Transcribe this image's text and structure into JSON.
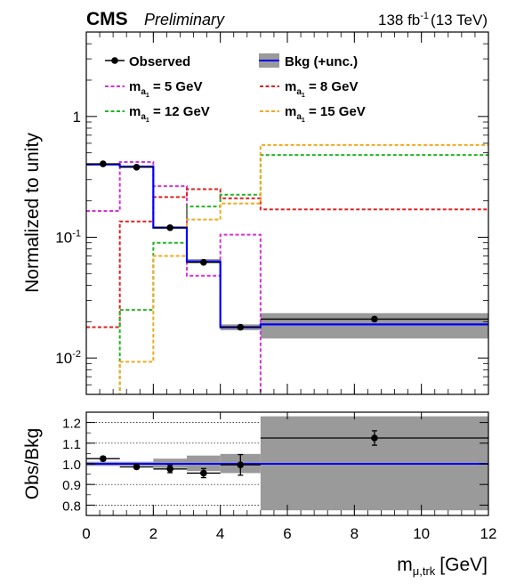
{
  "header": {
    "experiment": "CMS",
    "status": "Preliminary",
    "lumi_value": "138 fb",
    "lumi_exp": "-1",
    "lumi_energy": "(13 TeV)"
  },
  "colors": {
    "observed": "#000000",
    "bkg_line": "#0000ff",
    "bkg_band": "#9a9a9a",
    "sig_5": "#d633d6",
    "sig_8": "#e02020",
    "sig_12": "#22b522",
    "sig_15": "#f2a81e"
  },
  "legend": {
    "observed": "Observed",
    "bkg": "Bkg (+unc.)",
    "sig_5": "5 GeV",
    "sig_8": "8 GeV",
    "sig_12": "12 GeV",
    "sig_15": "15 GeV",
    "mass_symbol": "m",
    "mass_sub": "a",
    "mass_subsub": "1"
  },
  "chart_data": [
    {
      "type": "line",
      "panel": "main",
      "ylabel": "Normalized to unity",
      "yscale": "log",
      "ylim": [
        0.005,
        5
      ],
      "xlim": [
        0,
        12
      ],
      "ytick_labels": [
        {
          "value": 1,
          "label": "1"
        },
        {
          "value": 0.1,
          "label": "10",
          "exp": "-1"
        },
        {
          "value": 0.01,
          "label": "10",
          "exp": "-2"
        }
      ],
      "bin_edges": [
        0,
        1,
        2,
        3,
        4,
        5.2,
        12
      ],
      "observed": {
        "name": "Observed",
        "x": [
          0.5,
          1.5,
          2.5,
          3.5,
          4.6,
          8.6
        ],
        "y": [
          0.405,
          0.38,
          0.12,
          0.062,
          0.018,
          0.021
        ],
        "xerr": [
          0.5,
          0.5,
          0.5,
          0.5,
          0.6,
          3.4
        ]
      },
      "background": {
        "name": "Bkg (+unc.)",
        "values": [
          0.4,
          0.385,
          0.12,
          0.063,
          0.018,
          0.019
        ],
        "band_low": [
          0.395,
          0.38,
          0.118,
          0.061,
          0.017,
          0.0145
        ],
        "band_high": [
          0.405,
          0.39,
          0.123,
          0.066,
          0.019,
          0.0235
        ]
      },
      "series": [
        {
          "name": "5 GeV",
          "color_key": "sig_5",
          "values": [
            0.165,
            0.42,
            0.265,
            0.048,
            0.105,
            0.001
          ]
        },
        {
          "name": "8 GeV",
          "color_key": "sig_8",
          "values": [
            0.018,
            0.135,
            0.215,
            0.25,
            0.21,
            0.17
          ]
        },
        {
          "name": "12 GeV",
          "color_key": "sig_12",
          "values": [
            0.001,
            0.025,
            0.09,
            0.18,
            0.225,
            0.48
          ]
        },
        {
          "name": "15 GeV",
          "color_key": "sig_15",
          "values": [
            0.001,
            0.0093,
            0.07,
            0.14,
            0.19,
            0.58
          ]
        }
      ]
    },
    {
      "type": "scatter",
      "panel": "ratio",
      "ylabel": "Obs/Bkg",
      "xlabel_main": "m",
      "xlabel_sub": "μ,trk",
      "xlabel_unit": "[GeV]",
      "xlim": [
        0,
        12
      ],
      "ylim": [
        0.75,
        1.25
      ],
      "xticks": [
        0,
        2,
        4,
        6,
        8,
        10,
        12
      ],
      "yticks": [
        0.8,
        0.9,
        1.0,
        1.1,
        1.2
      ],
      "ytick_labels": [
        "0.8",
        "0.9",
        "1.0",
        "1.1",
        "1.2"
      ],
      "grid": true,
      "points": {
        "x": [
          0.5,
          1.5,
          2.5,
          3.5,
          4.6,
          8.6
        ],
        "y": [
          1.025,
          0.985,
          0.975,
          0.955,
          0.995,
          1.125
        ],
        "xerr": [
          0.5,
          0.5,
          0.5,
          0.5,
          0.6,
          3.4
        ],
        "yerr": [
          0.01,
          0.008,
          0.018,
          0.022,
          0.05,
          0.035
        ]
      },
      "band": {
        "bin_edges": [
          0,
          1,
          2,
          3,
          4,
          5.2,
          12
        ],
        "low": [
          0.99,
          0.99,
          0.98,
          0.965,
          0.955,
          0.775
        ],
        "high": [
          1.01,
          1.01,
          1.025,
          1.04,
          1.048,
          1.23
        ]
      }
    }
  ]
}
